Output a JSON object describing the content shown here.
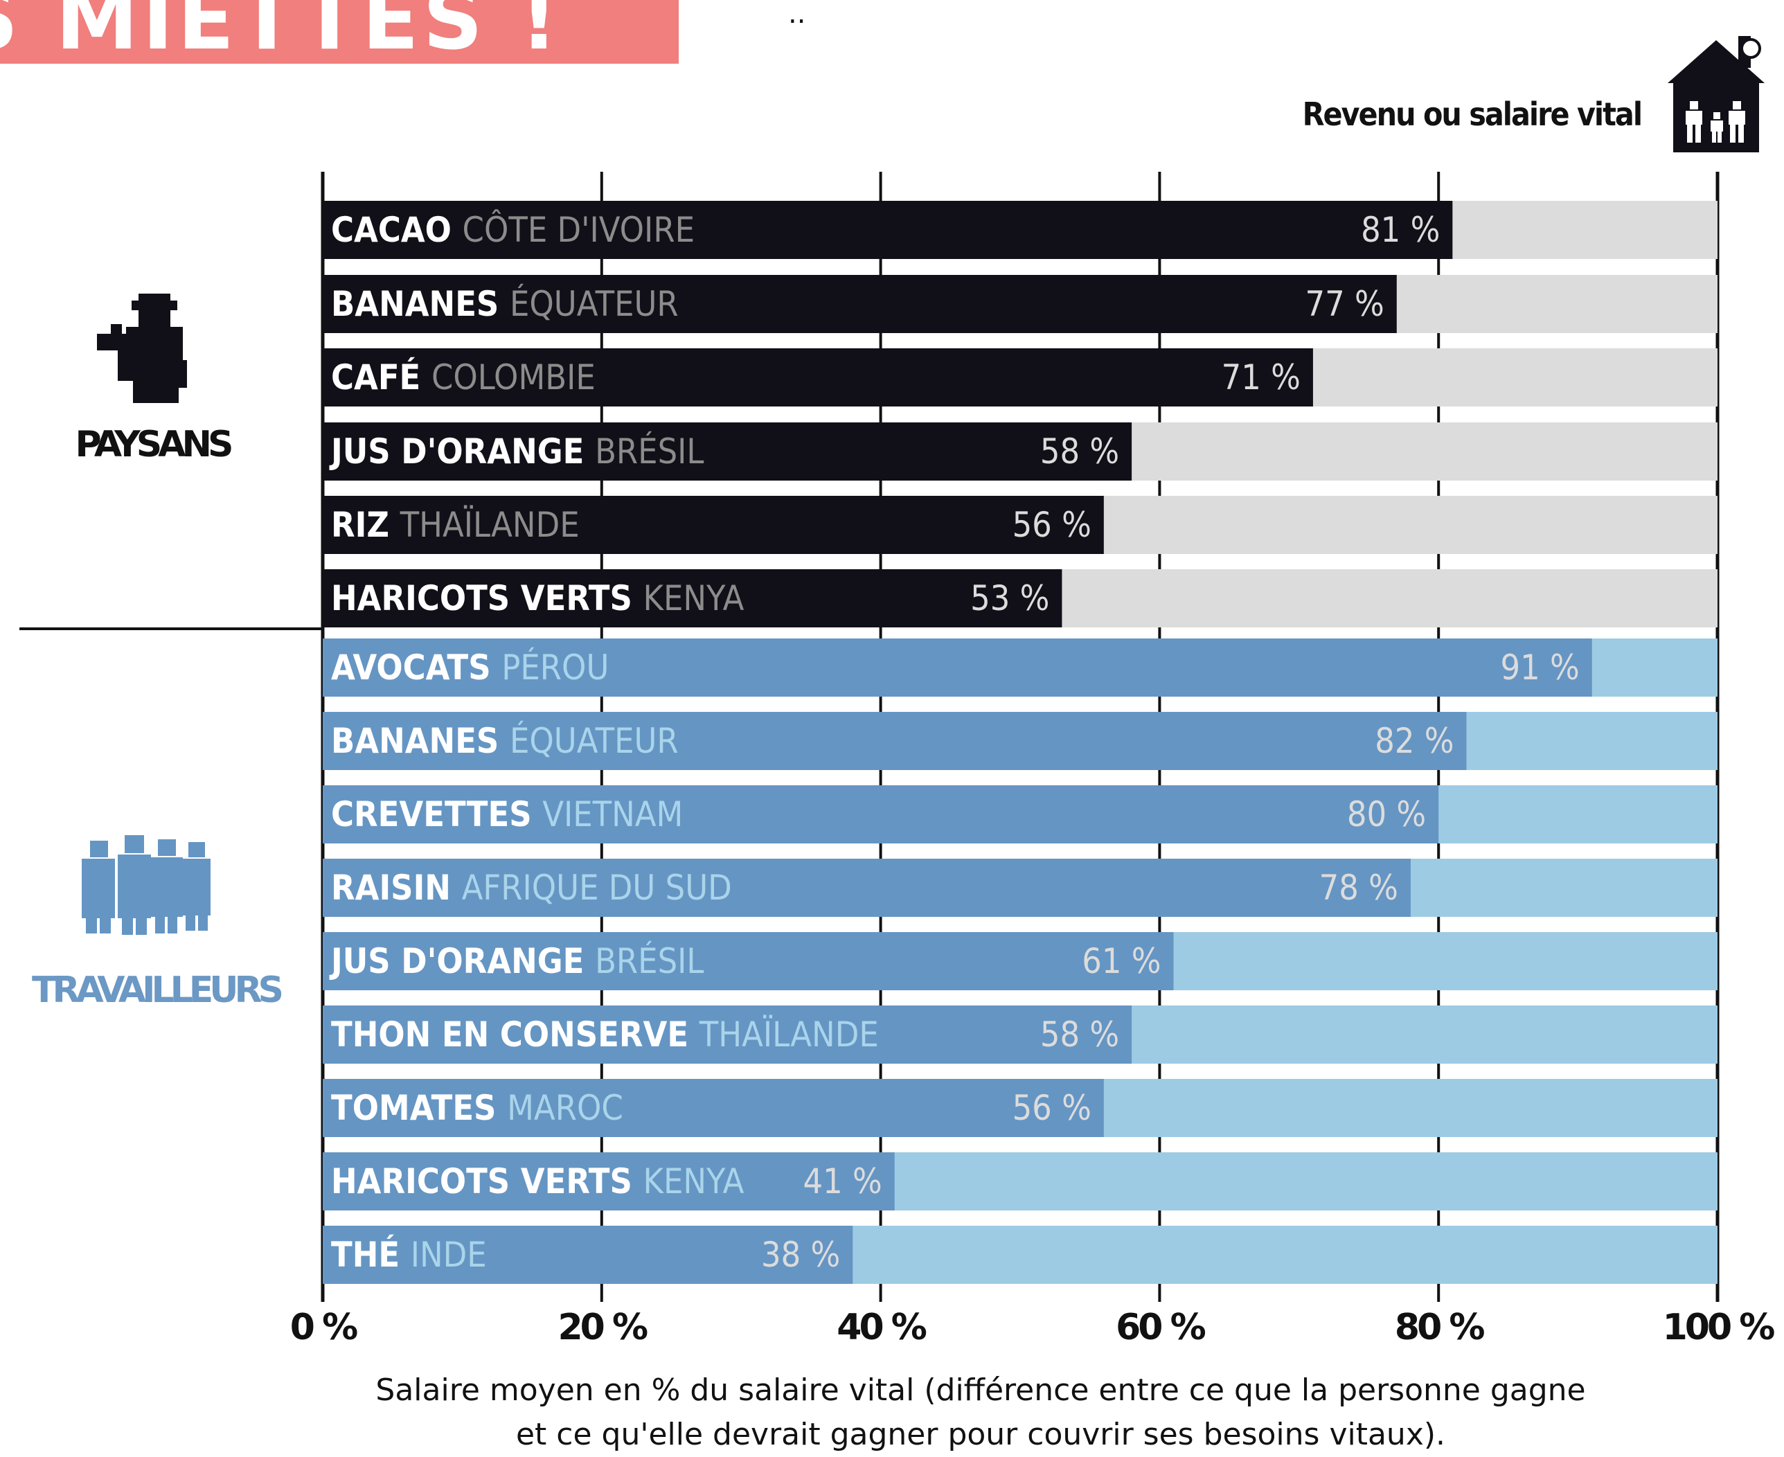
{
  "header": {
    "title_fragment": "S MIETTES !",
    "dots": ".."
  },
  "legend": {
    "label": "Revenu ou salaire vital",
    "icon": "house-icon"
  },
  "groups": {
    "paysans": {
      "label": "PAYSANS",
      "icon": "farmer-icon"
    },
    "travailleurs": {
      "label": "TRAVAILLEURS",
      "icon": "workers-icon"
    }
  },
  "colors": {
    "paysans_bar": "#111018",
    "paysans_track": "#dcdcdc",
    "paysans_country": "#8c8c8c",
    "travailleurs_bar": "#6595c3",
    "travailleurs_track": "#9ecbe4",
    "travailleurs_country": "#a9d4ea",
    "value_text": "#dcdcdc",
    "title_banner": "#f07f7d"
  },
  "chart_data": {
    "type": "bar",
    "orientation": "horizontal",
    "xlim": [
      0,
      100
    ],
    "x_ticks": [
      "0 %",
      "20 %",
      "40 %",
      "60 %",
      "80 %",
      "100 %"
    ],
    "x_tick_values": [
      0,
      20,
      40,
      60,
      80,
      100
    ],
    "value_suffix": " %",
    "series": [
      {
        "name": "PAYSANS",
        "bars": [
          {
            "product": "CACAO",
            "country": "CÔTE D'IVOIRE",
            "value": 81,
            "value_label": "81 %"
          },
          {
            "product": "BANANES",
            "country": "ÉQUATEUR",
            "value": 77,
            "value_label": "77 %"
          },
          {
            "product": "CAFÉ",
            "country": "COLOMBIE",
            "value": 71,
            "value_label": "71 %"
          },
          {
            "product": "JUS D'ORANGE",
            "country": "BRÉSIL",
            "value": 58,
            "value_label": "58 %"
          },
          {
            "product": "RIZ",
            "country": "THAÏLANDE",
            "value": 56,
            "value_label": "56 %"
          },
          {
            "product": "HARICOTS VERTS",
            "country": "KENYA",
            "value": 53,
            "value_label": "53 %"
          }
        ]
      },
      {
        "name": "TRAVAILLEURS",
        "bars": [
          {
            "product": "AVOCATS",
            "country": "PÉROU",
            "value": 91,
            "value_label": "91 %"
          },
          {
            "product": "BANANES",
            "country": "ÉQUATEUR",
            "value": 82,
            "value_label": "82 %"
          },
          {
            "product": "CREVETTES",
            "country": "VIETNAM",
            "value": 80,
            "value_label": "80 %"
          },
          {
            "product": "RAISIN",
            "country": "AFRIQUE DU SUD",
            "value": 78,
            "value_label": "78 %"
          },
          {
            "product": "JUS D'ORANGE",
            "country": "BRÉSIL",
            "value": 61,
            "value_label": "61 %"
          },
          {
            "product": "THON EN CONSERVE",
            "country": "THAÏLANDE",
            "value": 58,
            "value_label": "58 %"
          },
          {
            "product": "TOMATES",
            "country": "MAROC",
            "value": 56,
            "value_label": "56 %"
          },
          {
            "product": "HARICOTS VERTS",
            "country": "KENYA",
            "value": 41,
            "value_label": "41 %"
          },
          {
            "product": "THÉ",
            "country": "INDE",
            "value": 38,
            "value_label": "38 %"
          }
        ]
      }
    ],
    "caption_line1": "Salaire moyen en % du salaire vital (différence entre ce que la personne gagne",
    "caption_line2": "et ce qu'elle devrait gagner pour couvrir ses besoins vitaux)."
  }
}
